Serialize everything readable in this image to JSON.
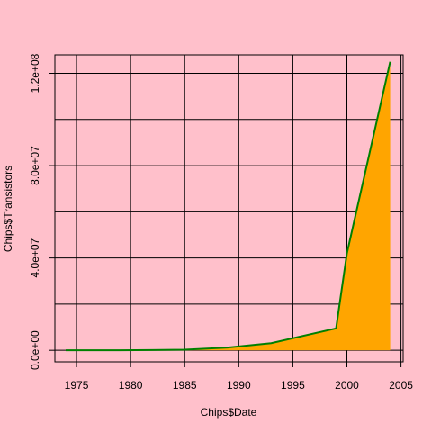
{
  "colors": {
    "background": "#ffc0cb",
    "fill": "#ffa500",
    "line": "#008000",
    "grid": "#000000"
  },
  "chart_data": {
    "type": "area",
    "title": "",
    "xlabel": "Chips$Date",
    "ylabel": "Chips$Transistors",
    "xlim": [
      1973,
      2005.2
    ],
    "ylim": [
      -5000000,
      128000000
    ],
    "grid": true,
    "x_ticks": [
      1975,
      1980,
      1985,
      1990,
      1995,
      2000,
      2005
    ],
    "x_tick_labels": [
      "1975",
      "1980",
      "1985",
      "1990",
      "1995",
      "2000",
      "2005"
    ],
    "y_ticks": [
      0,
      40000000,
      80000000,
      120000000
    ],
    "y_tick_labels": [
      "0.0e+00",
      "4.0e+07",
      "8.0e+07",
      "1.2e+08"
    ],
    "x_grid": [
      1975,
      1980,
      1985,
      1990,
      1995,
      2000,
      2005
    ],
    "y_grid": [
      0,
      20000000,
      40000000,
      60000000,
      80000000,
      100000000,
      120000000
    ],
    "series": [
      {
        "x": [
          1974,
          1979,
          1982,
          1985,
          1989,
          1993,
          1999,
          2000,
          2004
        ],
        "y": [
          4500,
          29000,
          134000,
          275000,
          1200000,
          3100000,
          9500000,
          42000000,
          125000000
        ]
      }
    ]
  }
}
